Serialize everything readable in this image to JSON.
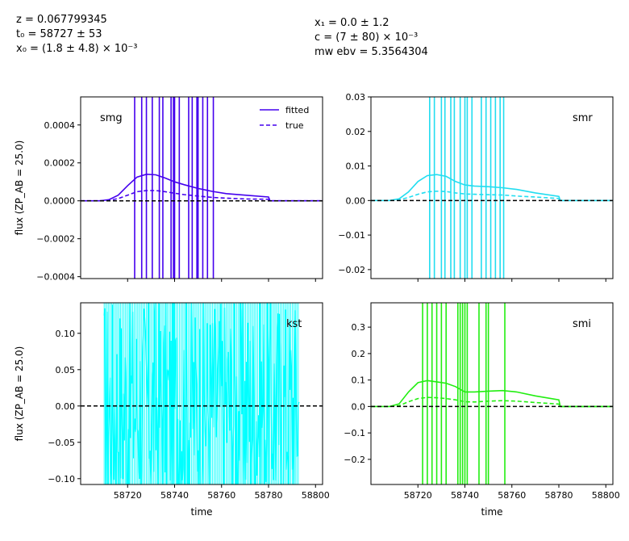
{
  "header": {
    "left": [
      "z = 0.067799345",
      "t₀ = 58727 ± 53",
      "x₀ = (1.8 ± 4.8) × 10⁻³"
    ],
    "right": [
      "x₁ = 0.0 ± 1.2",
      "c = (7 ± 80) × 10⁻³",
      "mw ebv = 5.3564304"
    ]
  },
  "chart_data": [
    {
      "type": "line",
      "band": "smg",
      "color": "#4400ee",
      "xlim": [
        58700,
        58803
      ],
      "ylim": [
        -0.00041,
        0.000548
      ],
      "yticks": [
        -0.0004,
        -0.0002,
        0.0,
        0.0002,
        0.0004
      ],
      "ytick_labels": [
        "−0.0004",
        "−0.0002",
        "0.0000",
        "0.0002",
        "0.0004"
      ],
      "xticks": [
        58720,
        58740,
        58760,
        58780,
        58800
      ],
      "xtick_labels": [],
      "ylabel": "flux (ZP_AB = 25.0)",
      "xlabel": "",
      "legend": {
        "placement": "top-right",
        "entries": [
          "fitted",
          "true"
        ]
      },
      "series": [
        {
          "name": "fitted",
          "style": "solid",
          "x": [
            58700,
            58708,
            58712,
            58716,
            58720,
            58724,
            58728,
            58732,
            58736,
            58740,
            58744,
            58750,
            58756,
            58762,
            58770,
            58780,
            58780.6,
            58790,
            58803
          ],
          "y": [
            0,
            0,
            6e-06,
            3e-05,
            8e-05,
            0.000125,
            0.00014,
            0.000137,
            0.00012,
            0.0001,
            8.5e-05,
            6.5e-05,
            5e-05,
            3.8e-05,
            3e-05,
            2e-05,
            0,
            0,
            0
          ]
        },
        {
          "name": "true",
          "style": "dashed",
          "x": [
            58700,
            58708,
            58712,
            58716,
            58720,
            58724,
            58728,
            58732,
            58736,
            58740,
            58744,
            58750,
            58756,
            58762,
            58770,
            58780,
            58780.6,
            58790,
            58803
          ],
          "y": [
            0,
            0,
            2e-06,
            1.2e-05,
            3e-05,
            4.8e-05,
            5.4e-05,
            5.4e-05,
            4.8e-05,
            4e-05,
            3.3e-05,
            2.5e-05,
            1.8e-05,
            1.4e-05,
            1e-05,
            8e-06,
            0,
            0,
            0
          ]
        }
      ],
      "observations": [
        58723,
        58726,
        58728,
        58730.5,
        58733.5,
        58735,
        58738.5,
        58739.5,
        58740,
        58742,
        58746,
        58747.5,
        58749.5,
        58750,
        58752,
        58754,
        58756.5
      ],
      "reference_line": 0
    },
    {
      "type": "line",
      "band": "smr",
      "color": "#22ddf0",
      "xlim": [
        58700,
        58803
      ],
      "ylim": [
        -0.0226,
        0.03
      ],
      "yticks": [
        -0.02,
        -0.01,
        0.0,
        0.01,
        0.02,
        0.03
      ],
      "ytick_labels": [
        "−0.02",
        "−0.01",
        "0.00",
        "0.01",
        "0.02",
        "0.03"
      ],
      "xticks": [
        58720,
        58740,
        58760,
        58780,
        58800
      ],
      "xtick_labels": [],
      "ylabel": "",
      "xlabel": "",
      "series": [
        {
          "name": "fitted",
          "style": "solid",
          "x": [
            58700,
            58708,
            58712,
            58716,
            58720,
            58724,
            58728,
            58732,
            58736,
            58740,
            58744,
            58750,
            58756,
            58762,
            58770,
            58780,
            58780.6,
            58790,
            58803
          ],
          "y": [
            0,
            0,
            0.0005,
            0.0025,
            0.0055,
            0.0072,
            0.0075,
            0.007,
            0.0055,
            0.0045,
            0.0042,
            0.004,
            0.0037,
            0.0032,
            0.0022,
            0.0012,
            0,
            0,
            0
          ]
        },
        {
          "name": "true",
          "style": "dashed",
          "x": [
            58700,
            58708,
            58712,
            58716,
            58720,
            58724,
            58728,
            58732,
            58736,
            58740,
            58744,
            58750,
            58756,
            58762,
            58770,
            58780,
            58780.6,
            58790,
            58803
          ],
          "y": [
            0,
            0,
            0.0002,
            0.0009,
            0.0018,
            0.0025,
            0.0027,
            0.0026,
            0.0022,
            0.0019,
            0.0018,
            0.0017,
            0.0016,
            0.0013,
            0.001,
            0.0006,
            0,
            0,
            0
          ]
        }
      ],
      "observations": [
        58725,
        58727,
        58730,
        58731.5,
        58734,
        58735.5,
        58738,
        58740,
        58741,
        58743,
        58747,
        58749,
        58751,
        58753,
        58755,
        58756.5
      ],
      "reference_line": 0
    },
    {
      "type": "line",
      "band": "kst",
      "color": "#00ffff",
      "xlim": [
        58700,
        58803
      ],
      "ylim": [
        -0.108,
        0.142
      ],
      "yticks": [
        -0.1,
        -0.05,
        0.0,
        0.05,
        0.1
      ],
      "ytick_labels": [
        "−0.10",
        "−0.05",
        "0.00",
        "0.05",
        "0.10"
      ],
      "xticks": [
        58720,
        58740,
        58760,
        58780,
        58800
      ],
      "xtick_labels": [
        "58720",
        "58740",
        "58760",
        "58780",
        "58800"
      ],
      "ylabel": "flux (ZP_AB = 25.0)",
      "xlabel": "time",
      "observations_range": [
        58710,
        58793
      ],
      "observations_count": 260,
      "reference_line": 0
    },
    {
      "type": "line",
      "band": "smi",
      "color": "#22ee11",
      "xlim": [
        58700,
        58803
      ],
      "ylim": [
        -0.295,
        0.392
      ],
      "yticks": [
        -0.2,
        -0.1,
        0.0,
        0.1,
        0.2,
        0.3
      ],
      "ytick_labels": [
        "−0.2",
        "−0.1",
        "0.0",
        "0.1",
        "0.2",
        "0.3"
      ],
      "xticks": [
        58720,
        58740,
        58760,
        58780,
        58800
      ],
      "xtick_labels": [
        "58720",
        "58740",
        "58760",
        "58780",
        "58800"
      ],
      "ylabel": "",
      "xlabel": "time",
      "series": [
        {
          "name": "fitted",
          "style": "solid",
          "x": [
            58700,
            58708,
            58712,
            58716,
            58720,
            58724,
            58728,
            58732,
            58736,
            58740,
            58744,
            58750,
            58756,
            58762,
            58770,
            58780,
            58780.6,
            58790,
            58803
          ],
          "y": [
            0,
            0,
            0.01,
            0.055,
            0.09,
            0.098,
            0.093,
            0.088,
            0.075,
            0.055,
            0.055,
            0.058,
            0.06,
            0.055,
            0.04,
            0.025,
            0,
            0,
            0
          ]
        },
        {
          "name": "true",
          "style": "dashed",
          "x": [
            58700,
            58708,
            58712,
            58716,
            58720,
            58724,
            58728,
            58732,
            58736,
            58740,
            58744,
            58750,
            58756,
            58762,
            58770,
            58780,
            58780.6,
            58790,
            58803
          ],
          "y": [
            0,
            0,
            0.003,
            0.018,
            0.03,
            0.034,
            0.033,
            0.03,
            0.025,
            0.018,
            0.017,
            0.02,
            0.022,
            0.02,
            0.015,
            0.009,
            0,
            0,
            0
          ]
        }
      ],
      "observations": [
        58722,
        58724,
        58726,
        58728,
        58730,
        58732,
        58737,
        58738,
        58739,
        58740,
        58741,
        58746,
        58749,
        58750,
        58757
      ],
      "reference_line": 0
    }
  ]
}
